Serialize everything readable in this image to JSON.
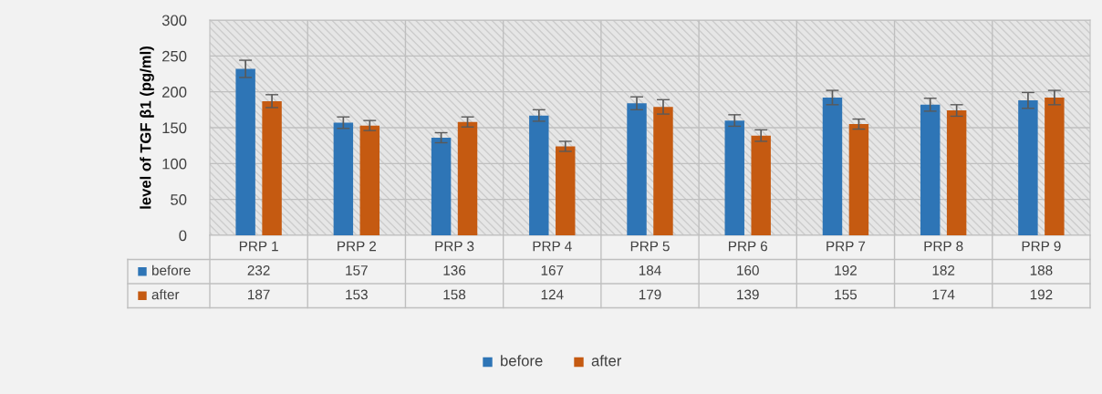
{
  "chart_data": {
    "type": "bar",
    "ylabel": "level of TGF β1 (pg/ml)",
    "categories": [
      "PRP 1",
      "PRP 2",
      "PRP 3",
      "PRP 4",
      "PRP 5",
      "PRP 6",
      "PRP 7",
      "PRP 8",
      "PRP 9"
    ],
    "series": [
      {
        "name": "before",
        "color": "#2e75b6",
        "values": [
          232,
          157,
          136,
          167,
          184,
          160,
          192,
          182,
          188
        ],
        "errors": [
          12,
          8,
          7,
          8,
          9,
          8,
          10,
          9,
          11
        ]
      },
      {
        "name": "after",
        "color": "#c55a11",
        "values": [
          187,
          153,
          158,
          124,
          179,
          139,
          155,
          174,
          192
        ],
        "errors": [
          9,
          7,
          7,
          7,
          10,
          8,
          7,
          8,
          10
        ]
      }
    ],
    "ylim": [
      0,
      300
    ],
    "yticks": [
      0,
      50,
      100,
      150,
      200,
      250,
      300
    ],
    "grid": "y",
    "legend": "bottom",
    "data_labels": true
  }
}
